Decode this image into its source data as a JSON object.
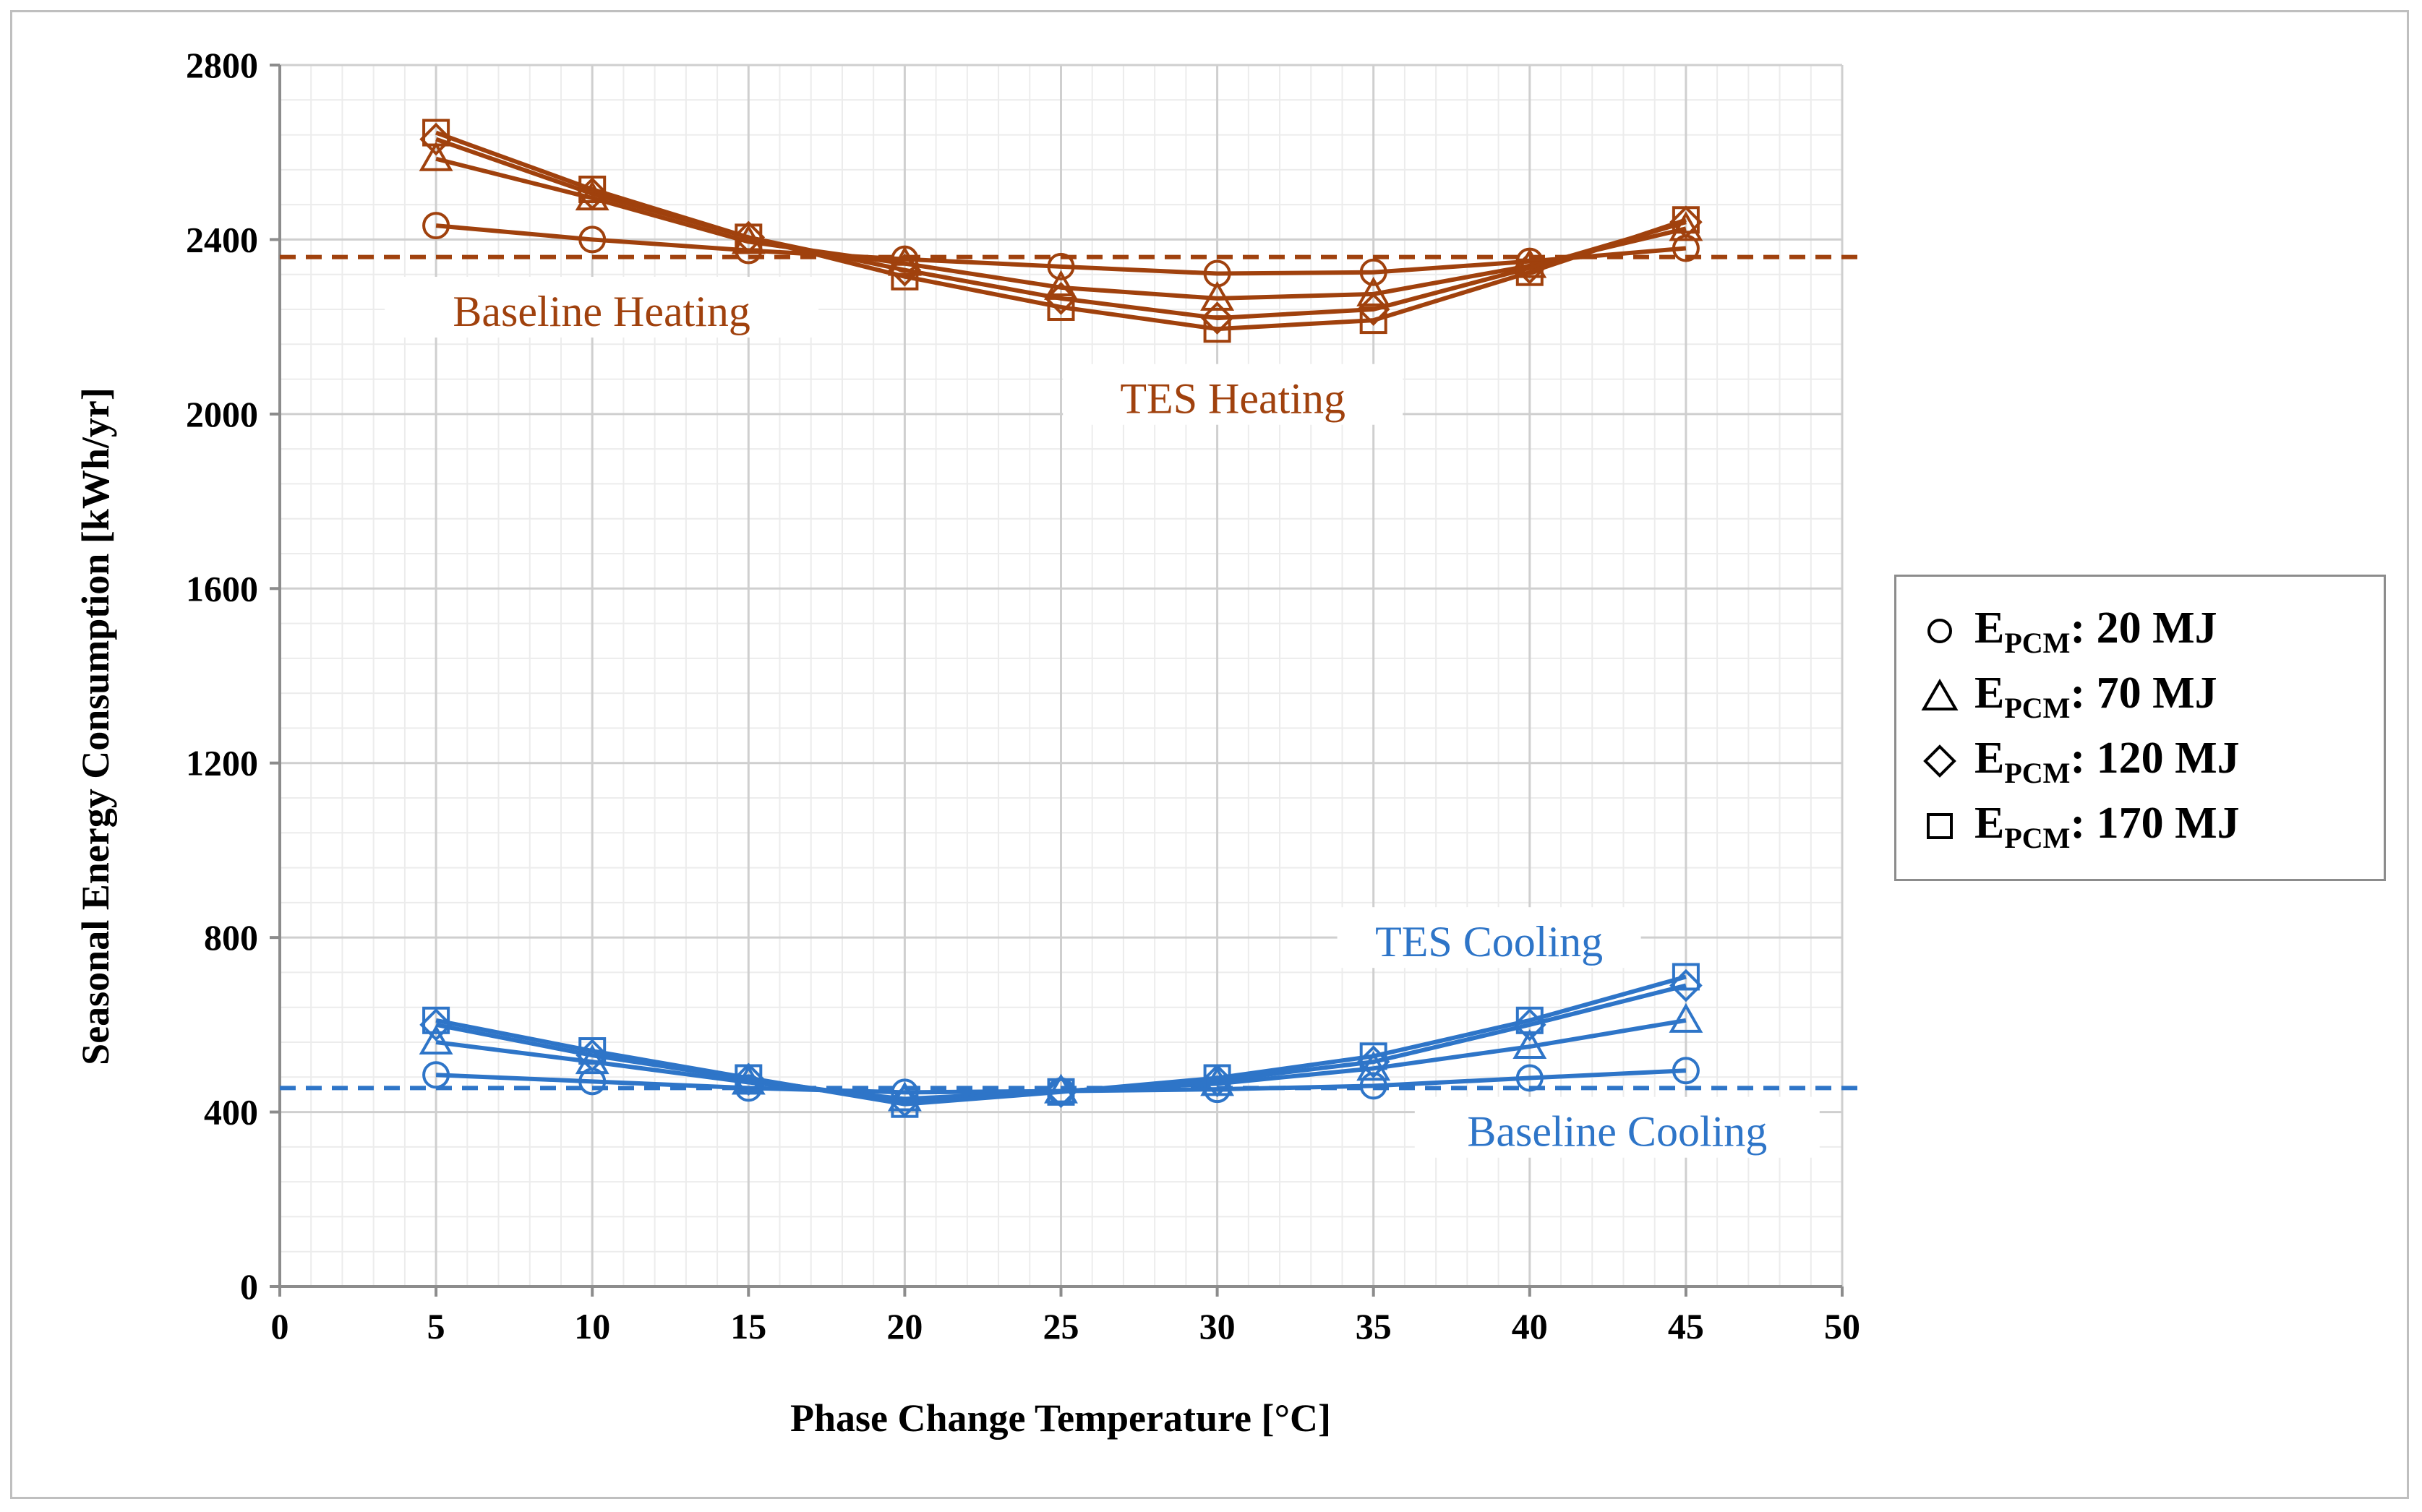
{
  "chart_data": {
    "type": "line",
    "xlabel": "Phase Change Temperature [°C]",
    "ylabel": "Seasonal Energy Consumption [kWh/yr]",
    "xlim": [
      0,
      50
    ],
    "ylim": [
      0,
      2800
    ],
    "xticks": [
      0,
      5,
      10,
      15,
      20,
      25,
      30,
      35,
      40,
      45,
      50
    ],
    "yticks": [
      0,
      400,
      800,
      1200,
      1600,
      2000,
      2400,
      2800
    ],
    "grid": true,
    "legend_position": "right",
    "colors": {
      "heating": "#a0410d",
      "cooling": "#2e75c8"
    },
    "x": [
      5,
      10,
      15,
      20,
      25,
      30,
      35,
      40,
      45
    ],
    "series": [
      {
        "group": "heating",
        "marker": "circle",
        "values": [
          2432,
          2400,
          2375,
          2355,
          2338,
          2322,
          2325,
          2350,
          2380
        ]
      },
      {
        "group": "heating",
        "marker": "triangle",
        "values": [
          2585,
          2495,
          2395,
          2345,
          2290,
          2265,
          2275,
          2340,
          2425
        ]
      },
      {
        "group": "heating",
        "marker": "diamond",
        "values": [
          2630,
          2505,
          2405,
          2330,
          2265,
          2220,
          2240,
          2335,
          2440
        ]
      },
      {
        "group": "heating",
        "marker": "square",
        "values": [
          2645,
          2515,
          2405,
          2315,
          2245,
          2195,
          2215,
          2325,
          2445
        ]
      },
      {
        "group": "cooling",
        "marker": "circle",
        "values": [
          485,
          470,
          455,
          445,
          448,
          452,
          460,
          478,
          495
        ]
      },
      {
        "group": "cooling",
        "marker": "triangle",
        "values": [
          560,
          515,
          468,
          430,
          448,
          465,
          500,
          550,
          610
        ]
      },
      {
        "group": "cooling",
        "marker": "diamond",
        "values": [
          600,
          530,
          475,
          425,
          447,
          472,
          515,
          600,
          690
        ]
      },
      {
        "group": "cooling",
        "marker": "square",
        "values": [
          610,
          540,
          478,
          418,
          446,
          478,
          528,
          610,
          710
        ]
      }
    ],
    "baselines": [
      {
        "group": "heating",
        "value": 2360
      },
      {
        "group": "cooling",
        "value": 455
      }
    ],
    "annotations": {
      "baseline_heating": "Baseline Heating",
      "tes_heating": "TES Heating",
      "tes_cooling": "TES Cooling",
      "baseline_cooling": "Baseline Cooling"
    },
    "legend": [
      {
        "marker": "circle",
        "prefix": "E",
        "sub": "PCM",
        "suffix": ": 20 MJ"
      },
      {
        "marker": "triangle",
        "prefix": "E",
        "sub": "PCM",
        "suffix": ": 70 MJ"
      },
      {
        "marker": "diamond",
        "prefix": "E",
        "sub": "PCM",
        "suffix": ": 120 MJ"
      },
      {
        "marker": "square",
        "prefix": "E",
        "sub": "PCM",
        "suffix": ": 170 MJ"
      }
    ]
  }
}
